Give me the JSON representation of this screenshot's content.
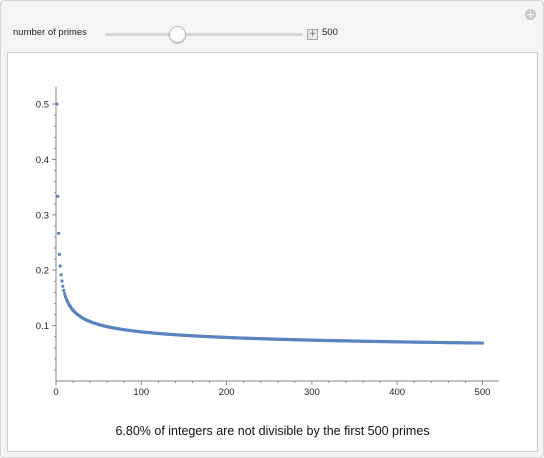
{
  "controls": {
    "label": "number of primes",
    "value": "500",
    "slider_min": 1,
    "slider_max": 2000,
    "slider_value": 500
  },
  "caption": "6.80% of integers are not divisible by the first 500 primes",
  "colors": {
    "series": "#5b84bf",
    "axis": "#888888"
  },
  "chart_data": {
    "type": "scatter",
    "title": "",
    "xlabel": "",
    "ylabel": "",
    "xlim": [
      0,
      510
    ],
    "ylim": [
      0,
      0.52
    ],
    "x_ticks": [
      0,
      100,
      200,
      300,
      400,
      500
    ],
    "y_ticks": [
      0.1,
      0.2,
      0.3,
      0.4,
      0.5
    ],
    "series": [
      {
        "x_range": [
          1,
          500
        ],
        "first_values": [
          0.5,
          0.333,
          0.267,
          0.229,
          0.208,
          0.192,
          0.181,
          0.171,
          0.164,
          0.158
        ],
        "final_value": 0.068
      }
    ]
  }
}
